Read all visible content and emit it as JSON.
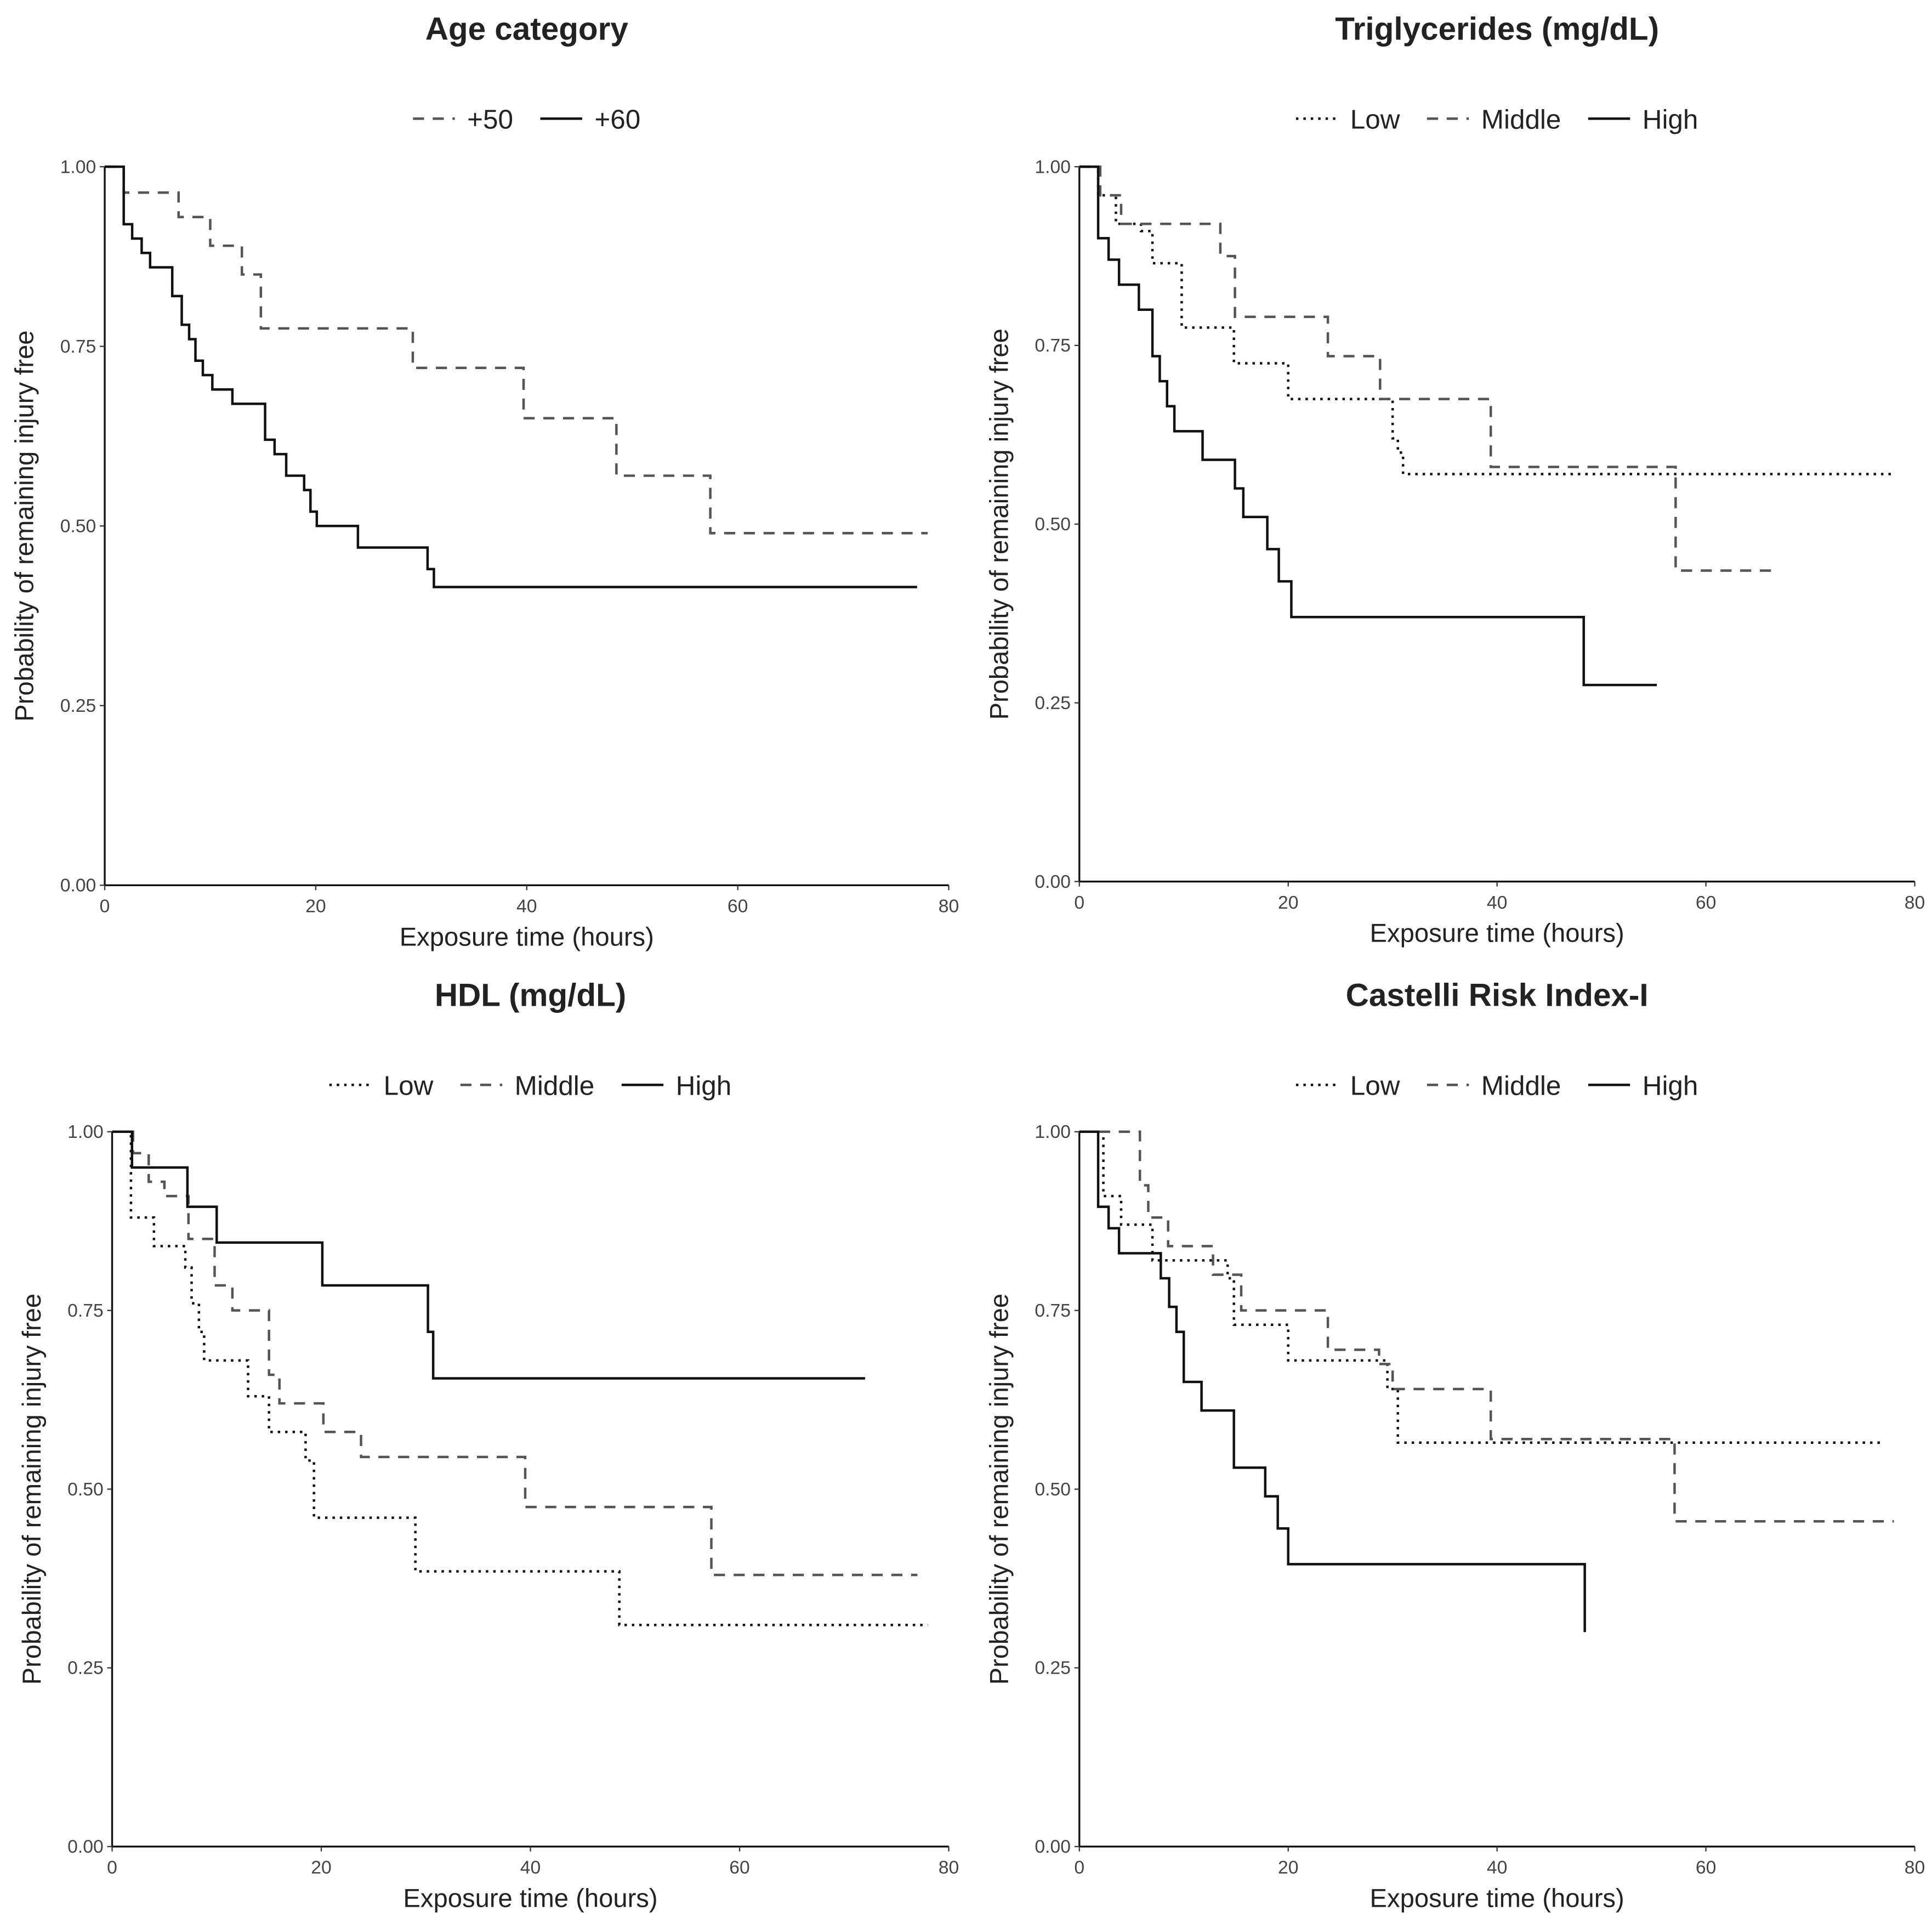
{
  "chart_data": [
    {
      "type": "step",
      "title": "Age category",
      "xlabel": "Exposure time (hours)",
      "ylabel": "Probability of remaining injury free",
      "xlim": [
        0,
        80
      ],
      "ylim": [
        0,
        1
      ],
      "xticks": [
        0,
        20,
        40,
        60,
        80
      ],
      "yticks": [
        {
          "value": 0,
          "label": "0.00"
        },
        0.25,
        {
          "value": 0.5,
          "label": "0.50"
        },
        0.75,
        {
          "value": 1,
          "label": "1.00"
        }
      ],
      "series": [
        {
          "name": "+50",
          "color": "#555555",
          "dash": "dashed",
          "x": [
            0,
            1.8,
            7,
            10,
            13,
            14.8,
            29.2,
            39.7,
            48.5,
            57.4,
            78
          ],
          "values": [
            1,
            0.964,
            0.93,
            0.89,
            0.85,
            0.775,
            0.72,
            0.65,
            0.57,
            0.49,
            0.49
          ]
        },
        {
          "name": "+60",
          "color": "#111111",
          "dash": "solid",
          "x": [
            0,
            1.8,
            2.6,
            3.5,
            4.3,
            6.4,
            7.3,
            8,
            8.6,
            9.3,
            10.2,
            12.1,
            15.2,
            16.1,
            17.2,
            18.9,
            19.5,
            20.1,
            24,
            30.6,
            31.2,
            77
          ],
          "values": [
            1,
            0.92,
            0.9,
            0.88,
            0.86,
            0.82,
            0.78,
            0.76,
            0.73,
            0.71,
            0.69,
            0.67,
            0.62,
            0.6,
            0.57,
            0.55,
            0.52,
            0.5,
            0.47,
            0.44,
            0.415,
            0.415
          ]
        }
      ]
    },
    {
      "type": "step",
      "title": "Triglycerides (mg/dL)",
      "xlabel": "Exposure time (hours)",
      "ylabel": "Probability of remaining injury free",
      "xlim": [
        0,
        80
      ],
      "ylim": [
        0,
        1
      ],
      "xticks": [
        0,
        20,
        40,
        60,
        80
      ],
      "yticks": [
        {
          "value": 0,
          "label": "0.00"
        },
        0.25,
        {
          "value": 0.5,
          "label": "0.50"
        },
        0.75,
        {
          "value": 1,
          "label": "1.00"
        }
      ],
      "series": [
        {
          "name": "Low",
          "color": "#111111",
          "dash": "dotted",
          "x": [
            0,
            1.8,
            3.5,
            5.9,
            7,
            9.8,
            14.8,
            20,
            30,
            30.5,
            31,
            78
          ],
          "values": [
            1,
            0.96,
            0.92,
            0.91,
            0.865,
            0.775,
            0.725,
            0.675,
            0.62,
            0.6,
            0.57,
            0.57
          ]
        },
        {
          "name": "Middle",
          "color": "#555555",
          "dash": "dashed",
          "x": [
            0,
            2,
            4,
            13.5,
            14.9,
            23.8,
            28.8,
            39.4,
            57.1,
            67
          ],
          "values": [
            1,
            0.96,
            0.92,
            0.875,
            0.79,
            0.735,
            0.675,
            0.58,
            0.435,
            0.435
          ]
        },
        {
          "name": "High",
          "color": "#111111",
          "dash": "solid",
          "x": [
            0,
            1.8,
            2.8,
            3.8,
            5.7,
            7,
            7.7,
            8.4,
            9.1,
            11.8,
            14.9,
            15.7,
            18,
            19.1,
            20.3,
            48.3,
            55.3
          ],
          "values": [
            1,
            0.9,
            0.87,
            0.835,
            0.8,
            0.735,
            0.7,
            0.665,
            0.63,
            0.59,
            0.55,
            0.51,
            0.465,
            0.42,
            0.37,
            0.275,
            0.275
          ]
        }
      ]
    },
    {
      "type": "step",
      "title": "HDL (mg/dL)",
      "xlabel": "Exposure time (hours)",
      "ylabel": "Probability of remaining injury free",
      "xlim": [
        0,
        80
      ],
      "ylim": [
        0,
        1
      ],
      "xticks": [
        0,
        20,
        40,
        60,
        80
      ],
      "yticks": [
        {
          "value": 0,
          "label": "0.00"
        },
        0.25,
        {
          "value": 0.5,
          "label": "0.50"
        },
        0.75,
        {
          "value": 1,
          "label": "1.00"
        }
      ],
      "series": [
        {
          "name": "Low",
          "color": "#111111",
          "dash": "dotted",
          "x": [
            0,
            1.8,
            4,
            7,
            7.6,
            8.3,
            8.8,
            13,
            15,
            18.5,
            19.3,
            29,
            48.5,
            78
          ],
          "values": [
            1,
            0.88,
            0.84,
            0.81,
            0.76,
            0.72,
            0.68,
            0.63,
            0.58,
            0.54,
            0.46,
            0.385,
            0.31,
            0.31
          ]
        },
        {
          "name": "Middle",
          "color": "#555555",
          "dash": "dashed",
          "x": [
            0,
            2,
            3.5,
            5,
            7.3,
            9.8,
            11.5,
            15,
            16,
            20.2,
            23.8,
            39.5,
            57.3,
            77
          ],
          "values": [
            1,
            0.97,
            0.93,
            0.91,
            0.85,
            0.785,
            0.75,
            0.66,
            0.62,
            0.58,
            0.545,
            0.475,
            0.38,
            0.38
          ]
        },
        {
          "name": "High",
          "color": "#111111",
          "dash": "solid",
          "x": [
            0,
            1.9,
            7.2,
            10,
            20.1,
            30.2,
            30.7,
            72
          ],
          "values": [
            1,
            0.95,
            0.895,
            0.845,
            0.785,
            0.72,
            0.655,
            0.655
          ]
        }
      ]
    },
    {
      "type": "step",
      "title": "Castelli Risk Index-I",
      "xlabel": "Exposure time (hours)",
      "ylabel": "Probability of remaining injury free",
      "xlim": [
        0,
        80
      ],
      "ylim": [
        0,
        1
      ],
      "xticks": [
        0,
        20,
        40,
        60,
        80
      ],
      "yticks": [
        {
          "value": 0,
          "label": "0.00"
        },
        0.25,
        {
          "value": 0.5,
          "label": "0.50"
        },
        0.75,
        {
          "value": 1,
          "label": "1.00"
        }
      ],
      "series": [
        {
          "name": "Low",
          "color": "#111111",
          "dash": "dotted",
          "x": [
            0,
            2.3,
            4,
            7,
            14.2,
            14.8,
            20,
            29.5,
            30.5,
            76.8
          ],
          "values": [
            1,
            0.91,
            0.87,
            0.82,
            0.795,
            0.73,
            0.68,
            0.64,
            0.565,
            0.565
          ]
        },
        {
          "name": "Middle",
          "color": "#555555",
          "dash": "dashed",
          "x": [
            0,
            5.8,
            6.6,
            8.5,
            12.8,
            15.5,
            23.8,
            28.7,
            30,
            39.4,
            57,
            78
          ],
          "values": [
            1,
            0.925,
            0.88,
            0.84,
            0.8,
            0.75,
            0.695,
            0.675,
            0.64,
            0.57,
            0.455,
            0.455
          ]
        },
        {
          "name": "High",
          "color": "#111111",
          "dash": "solid",
          "x": [
            0,
            1.8,
            2.8,
            3.8,
            7.8,
            8.6,
            9.3,
            10,
            11.7,
            14.8,
            17.8,
            19,
            20,
            48.4
          ],
          "values": [
            1,
            0.895,
            0.865,
            0.83,
            0.795,
            0.755,
            0.72,
            0.65,
            0.61,
            0.53,
            0.49,
            0.445,
            0.395,
            0.3
          ]
        }
      ]
    }
  ]
}
